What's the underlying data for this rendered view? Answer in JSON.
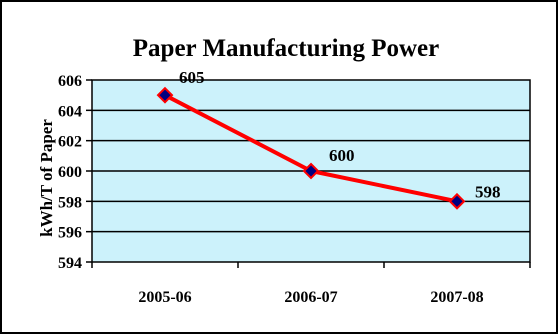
{
  "chart_data": {
    "type": "line",
    "title": "Paper Manufacturing Power",
    "xlabel": "",
    "ylabel": "kWh/T of Paper",
    "categories": [
      "2005-06",
      "2006-07",
      "2007-08"
    ],
    "series": [
      {
        "values": [
          605,
          600,
          598
        ],
        "data_labels": [
          "605",
          "600",
          "598"
        ]
      }
    ],
    "ylim": [
      594,
      606
    ],
    "yticks": [
      "594",
      "596",
      "598",
      "600",
      "602",
      "604",
      "606"
    ],
    "grid": true,
    "legend": "none"
  },
  "colors": {
    "plot_background": "#ccf2fb",
    "line": "#ff0000",
    "marker_fill": "#000080",
    "marker_stroke": "#ff0000",
    "frame": "#000000"
  }
}
